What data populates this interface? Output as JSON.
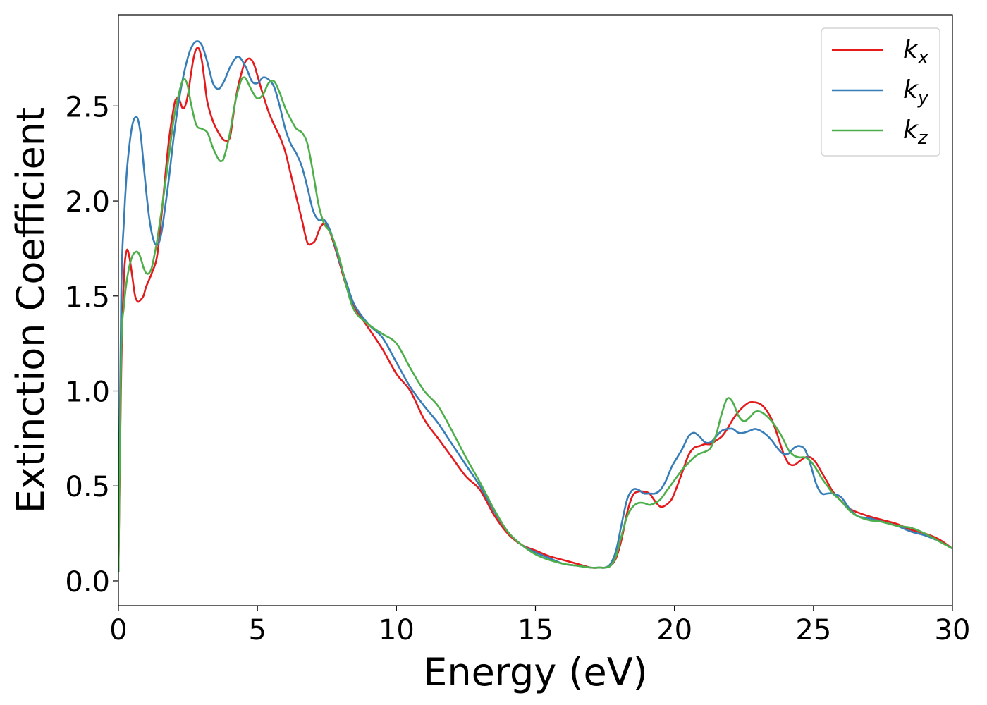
{
  "chart_data": {
    "type": "line",
    "xlabel": "Energy (eV)",
    "ylabel": "Extinction Coefficient",
    "xlim": [
      0,
      30
    ],
    "ylim": [
      -0.13,
      2.98
    ],
    "xticks": [
      0,
      5,
      10,
      15,
      20,
      25,
      30
    ],
    "yticks": [
      0.0,
      0.5,
      1.0,
      1.5,
      2.0,
      2.5
    ],
    "xtick_labels": [
      "0",
      "5",
      "10",
      "15",
      "20",
      "25",
      "30"
    ],
    "ytick_labels": [
      "0.0",
      "0.5",
      "1.0",
      "1.5",
      "2.0",
      "2.5"
    ],
    "grid": false,
    "legend_position": "top-right",
    "series": [
      {
        "name": "k_x",
        "base": "k",
        "sub": "x",
        "color": "#e41a1c",
        "x": [
          0,
          0.1,
          0.2,
          0.3,
          0.4,
          0.5,
          0.6,
          0.7,
          0.8,
          0.9,
          1.0,
          1.2,
          1.4,
          1.6,
          1.8,
          2.0,
          2.1,
          2.2,
          2.3,
          2.4,
          2.5,
          2.6,
          2.7,
          2.8,
          2.9,
          3.0,
          3.1,
          3.2,
          3.4,
          3.6,
          3.8,
          4.0,
          4.1,
          4.2,
          4.3,
          4.4,
          4.5,
          4.6,
          4.7,
          4.8,
          4.9,
          5.0,
          5.2,
          5.4,
          5.6,
          5.8,
          6.0,
          6.2,
          6.4,
          6.6,
          6.8,
          7.0,
          7.1,
          7.2,
          7.3,
          7.4,
          7.5,
          7.6,
          7.8,
          8.0,
          8.2,
          8.5,
          9.0,
          9.5,
          10.0,
          10.5,
          11.0,
          11.5,
          12.0,
          12.5,
          13.0,
          13.5,
          14.0,
          14.5,
          15.0,
          15.5,
          16.0,
          16.5,
          17.0,
          17.3,
          17.5,
          17.7,
          17.9,
          18.1,
          18.3,
          18.5,
          18.7,
          18.9,
          19.1,
          19.3,
          19.5,
          19.7,
          19.9,
          20.1,
          20.3,
          20.5,
          20.7,
          20.9,
          21.1,
          21.3,
          21.5,
          21.7,
          21.9,
          22.1,
          22.3,
          22.5,
          22.7,
          22.9,
          23.1,
          23.3,
          23.5,
          23.7,
          23.9,
          24.1,
          24.3,
          24.5,
          24.7,
          24.9,
          25.1,
          25.3,
          25.5,
          25.7,
          26.0,
          26.3,
          26.6,
          27.0,
          27.5,
          28.0,
          28.5,
          29.0,
          29.5,
          30.0
        ],
        "y": [
          0.05,
          1.1,
          1.6,
          1.74,
          1.7,
          1.6,
          1.5,
          1.47,
          1.48,
          1.5,
          1.55,
          1.62,
          1.72,
          2.0,
          2.3,
          2.5,
          2.54,
          2.53,
          2.49,
          2.5,
          2.56,
          2.66,
          2.75,
          2.8,
          2.8,
          2.74,
          2.63,
          2.52,
          2.42,
          2.36,
          2.32,
          2.33,
          2.42,
          2.52,
          2.6,
          2.66,
          2.71,
          2.74,
          2.75,
          2.74,
          2.71,
          2.66,
          2.56,
          2.47,
          2.4,
          2.34,
          2.26,
          2.14,
          2.02,
          1.9,
          1.78,
          1.78,
          1.8,
          1.84,
          1.87,
          1.88,
          1.87,
          1.84,
          1.75,
          1.65,
          1.55,
          1.44,
          1.33,
          1.22,
          1.09,
          1.0,
          0.85,
          0.75,
          0.65,
          0.55,
          0.48,
          0.35,
          0.25,
          0.19,
          0.16,
          0.13,
          0.11,
          0.09,
          0.07,
          0.07,
          0.07,
          0.08,
          0.12,
          0.22,
          0.36,
          0.45,
          0.47,
          0.47,
          0.46,
          0.42,
          0.39,
          0.4,
          0.43,
          0.5,
          0.58,
          0.66,
          0.7,
          0.71,
          0.72,
          0.72,
          0.74,
          0.76,
          0.8,
          0.85,
          0.89,
          0.92,
          0.94,
          0.94,
          0.93,
          0.9,
          0.85,
          0.77,
          0.68,
          0.62,
          0.61,
          0.63,
          0.65,
          0.65,
          0.62,
          0.57,
          0.52,
          0.47,
          0.42,
          0.38,
          0.36,
          0.34,
          0.32,
          0.3,
          0.27,
          0.25,
          0.22,
          0.17
        ]
      },
      {
        "name": "k_y",
        "base": "k",
        "sub": "y",
        "color": "#377eb8",
        "x": [
          0,
          0.1,
          0.2,
          0.3,
          0.4,
          0.5,
          0.6,
          0.7,
          0.8,
          0.9,
          1.0,
          1.1,
          1.2,
          1.3,
          1.4,
          1.5,
          1.6,
          1.8,
          2.0,
          2.2,
          2.4,
          2.6,
          2.8,
          3.0,
          3.2,
          3.4,
          3.6,
          3.8,
          4.0,
          4.2,
          4.3,
          4.4,
          4.6,
          4.8,
          5.0,
          5.2,
          5.4,
          5.6,
          5.8,
          6.0,
          6.2,
          6.4,
          6.6,
          6.8,
          7.0,
          7.2,
          7.4,
          7.6,
          7.8,
          8.0,
          8.2,
          8.5,
          9.0,
          9.5,
          10.0,
          10.5,
          11.0,
          11.5,
          12.0,
          12.5,
          13.0,
          13.5,
          14.0,
          14.5,
          15.0,
          15.5,
          16.0,
          16.5,
          17.0,
          17.3,
          17.5,
          17.7,
          17.9,
          18.1,
          18.3,
          18.5,
          18.7,
          18.9,
          19.1,
          19.3,
          19.5,
          19.7,
          19.9,
          20.1,
          20.3,
          20.5,
          20.7,
          20.9,
          21.1,
          21.3,
          21.5,
          21.7,
          21.9,
          22.1,
          22.3,
          22.5,
          22.7,
          22.9,
          23.1,
          23.3,
          23.5,
          23.7,
          23.9,
          24.1,
          24.3,
          24.5,
          24.7,
          24.9,
          25.1,
          25.3,
          25.5,
          25.7,
          26.0,
          26.3,
          26.6,
          27.0,
          27.5,
          28.0,
          28.5,
          29.0,
          29.5,
          30.0
        ],
        "y": [
          0.05,
          1.5,
          1.9,
          2.15,
          2.3,
          2.4,
          2.44,
          2.43,
          2.35,
          2.2,
          2.05,
          1.92,
          1.83,
          1.78,
          1.77,
          1.8,
          1.88,
          2.1,
          2.35,
          2.55,
          2.7,
          2.8,
          2.84,
          2.82,
          2.73,
          2.62,
          2.59,
          2.63,
          2.7,
          2.75,
          2.76,
          2.75,
          2.7,
          2.63,
          2.62,
          2.65,
          2.64,
          2.6,
          2.5,
          2.38,
          2.3,
          2.25,
          2.18,
          2.07,
          1.95,
          1.9,
          1.9,
          1.85,
          1.76,
          1.66,
          1.57,
          1.45,
          1.35,
          1.28,
          1.15,
          1.02,
          0.92,
          0.83,
          0.72,
          0.61,
          0.5,
          0.37,
          0.26,
          0.19,
          0.15,
          0.12,
          0.09,
          0.08,
          0.07,
          0.07,
          0.07,
          0.09,
          0.16,
          0.3,
          0.43,
          0.48,
          0.48,
          0.46,
          0.46,
          0.46,
          0.48,
          0.53,
          0.6,
          0.65,
          0.7,
          0.76,
          0.78,
          0.76,
          0.73,
          0.73,
          0.76,
          0.79,
          0.8,
          0.8,
          0.78,
          0.78,
          0.79,
          0.8,
          0.79,
          0.77,
          0.74,
          0.7,
          0.67,
          0.67,
          0.7,
          0.71,
          0.69,
          0.61,
          0.51,
          0.46,
          0.46,
          0.46,
          0.44,
          0.38,
          0.34,
          0.33,
          0.31,
          0.29,
          0.26,
          0.24,
          0.21,
          0.17
        ]
      },
      {
        "name": "k_z",
        "base": "k",
        "sub": "z",
        "color": "#4daf4a",
        "x": [
          0,
          0.1,
          0.2,
          0.3,
          0.4,
          0.5,
          0.6,
          0.7,
          0.8,
          0.9,
          1.0,
          1.1,
          1.2,
          1.3,
          1.4,
          1.6,
          1.8,
          2.0,
          2.2,
          2.3,
          2.4,
          2.5,
          2.6,
          2.8,
          3.0,
          3.2,
          3.4,
          3.6,
          3.7,
          3.8,
          4.0,
          4.2,
          4.4,
          4.5,
          4.6,
          4.8,
          5.0,
          5.2,
          5.4,
          5.6,
          5.8,
          6.0,
          6.2,
          6.4,
          6.6,
          6.8,
          7.0,
          7.2,
          7.4,
          7.6,
          7.8,
          8.0,
          8.2,
          8.5,
          9.0,
          9.5,
          10.0,
          10.5,
          11.0,
          11.5,
          12.0,
          12.5,
          13.0,
          13.5,
          14.0,
          14.5,
          15.0,
          15.5,
          16.0,
          16.5,
          17.0,
          17.3,
          17.5,
          17.7,
          17.9,
          18.1,
          18.3,
          18.5,
          18.7,
          18.9,
          19.1,
          19.3,
          19.5,
          19.7,
          19.9,
          20.1,
          20.3,
          20.5,
          20.7,
          20.9,
          21.1,
          21.3,
          21.5,
          21.7,
          21.9,
          22.1,
          22.3,
          22.5,
          22.7,
          22.9,
          23.1,
          23.3,
          23.5,
          23.7,
          23.9,
          24.1,
          24.3,
          24.5,
          24.7,
          24.9,
          25.1,
          25.3,
          25.5,
          25.7,
          26.0,
          26.3,
          26.6,
          27.0,
          27.5,
          28.0,
          28.5,
          29.0,
          29.5,
          30.0
        ],
        "y": [
          0.05,
          1.2,
          1.45,
          1.58,
          1.66,
          1.71,
          1.73,
          1.73,
          1.7,
          1.65,
          1.62,
          1.62,
          1.65,
          1.72,
          1.8,
          2.0,
          2.22,
          2.44,
          2.58,
          2.63,
          2.64,
          2.6,
          2.52,
          2.4,
          2.38,
          2.36,
          2.28,
          2.22,
          2.21,
          2.23,
          2.35,
          2.52,
          2.63,
          2.65,
          2.64,
          2.58,
          2.54,
          2.56,
          2.62,
          2.63,
          2.57,
          2.49,
          2.43,
          2.38,
          2.36,
          2.3,
          2.15,
          1.98,
          1.88,
          1.84,
          1.77,
          1.67,
          1.55,
          1.42,
          1.35,
          1.3,
          1.25,
          1.12,
          1.0,
          0.92,
          0.79,
          0.65,
          0.52,
          0.38,
          0.26,
          0.19,
          0.14,
          0.11,
          0.09,
          0.08,
          0.07,
          0.07,
          0.07,
          0.08,
          0.13,
          0.24,
          0.34,
          0.39,
          0.41,
          0.41,
          0.4,
          0.41,
          0.43,
          0.47,
          0.51,
          0.55,
          0.59,
          0.62,
          0.65,
          0.67,
          0.68,
          0.7,
          0.77,
          0.88,
          0.96,
          0.94,
          0.87,
          0.84,
          0.86,
          0.89,
          0.89,
          0.87,
          0.84,
          0.8,
          0.75,
          0.69,
          0.66,
          0.65,
          0.65,
          0.63,
          0.59,
          0.54,
          0.5,
          0.46,
          0.42,
          0.37,
          0.34,
          0.32,
          0.31,
          0.29,
          0.28,
          0.25,
          0.21,
          0.17
        ]
      }
    ]
  }
}
